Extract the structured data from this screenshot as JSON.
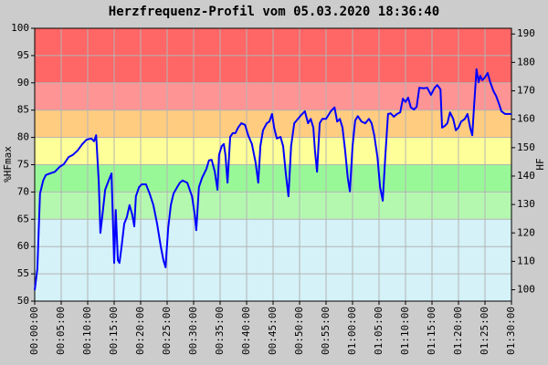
{
  "chart_data": {
    "type": "line",
    "title": "Herzfrequenz-Profil vom 05.03.2020 18:36:40",
    "ylabel": "%HFmax",
    "y2label": "HF",
    "grid": true,
    "xlim": [
      0,
      90
    ],
    "xticks": [
      {
        "value": 0,
        "label": "00:00:00"
      },
      {
        "value": 5,
        "label": "00:05:00"
      },
      {
        "value": 10,
        "label": "00:10:00"
      },
      {
        "value": 15,
        "label": "00:15:00"
      },
      {
        "value": 20,
        "label": "00:20:00"
      },
      {
        "value": 25,
        "label": "00:25:00"
      },
      {
        "value": 30,
        "label": "00:30:00"
      },
      {
        "value": 35,
        "label": "00:35:00"
      },
      {
        "value": 40,
        "label": "00:40:00"
      },
      {
        "value": 45,
        "label": "00:45:00"
      },
      {
        "value": 50,
        "label": "00:50:00"
      },
      {
        "value": 55,
        "label": "00:55:00"
      },
      {
        "value": 60,
        "label": "01:00:00"
      },
      {
        "value": 65,
        "label": "01:05:00"
      },
      {
        "value": 70,
        "label": "01:10:00"
      },
      {
        "value": 75,
        "label": "01:15:00"
      },
      {
        "value": 80,
        "label": "01:20:00"
      },
      {
        "value": 85,
        "label": "01:25:00"
      },
      {
        "value": 90,
        "label": "01:30:00"
      }
    ],
    "ylim": [
      50,
      100
    ],
    "yticks": [
      50,
      55,
      60,
      65,
      70,
      75,
      80,
      85,
      90,
      95,
      100
    ],
    "y2lim": [
      96,
      192
    ],
    "y2ticks": [
      100,
      110,
      120,
      130,
      140,
      150,
      160,
      170,
      180,
      190
    ],
    "zones": [
      {
        "from": 50,
        "to": 65,
        "color": "#d4f2f8"
      },
      {
        "from": 65,
        "to": 70,
        "color": "#b4f8b0"
      },
      {
        "from": 70,
        "to": 75,
        "color": "#98f898"
      },
      {
        "from": 75,
        "to": 80,
        "color": "#ffff99"
      },
      {
        "from": 80,
        "to": 85,
        "color": "#ffcc80"
      },
      {
        "from": 85,
        "to": 90,
        "color": "#ff9494"
      },
      {
        "from": 90,
        "to": 100,
        "color": "#ff6666"
      }
    ],
    "x": [
      0,
      0.5,
      1.0,
      1.6,
      2.1,
      2.9,
      3.8,
      4.7,
      5.5,
      6.4,
      7.2,
      8.1,
      9.0,
      9.8,
      10.7,
      11.2,
      11.6,
      12.1,
      12.4,
      12.8,
      13.3,
      13.8,
      14.5,
      15.0,
      15.3,
      15.7,
      16.0,
      16.4,
      16.9,
      17.4,
      17.9,
      18.4,
      18.8,
      19.1,
      19.7,
      20.2,
      21.0,
      21.7,
      22.4,
      23.1,
      23.8,
      24.3,
      24.7,
      25.2,
      25.7,
      26.2,
      26.9,
      27.4,
      27.9,
      28.8,
      29.7,
      30.2,
      30.5,
      31.0,
      31.6,
      32.4,
      32.9,
      33.4,
      34.0,
      34.5,
      34.8,
      35.3,
      35.7,
      36.0,
      36.4,
      36.9,
      37.4,
      37.9,
      38.4,
      39.0,
      39.7,
      40.3,
      41.0,
      41.7,
      42.2,
      42.6,
      43.1,
      43.8,
      44.3,
      44.8,
      45.2,
      45.7,
      46.4,
      46.9,
      47.4,
      47.9,
      48.4,
      49.0,
      49.7,
      50.3,
      51.0,
      51.6,
      52.1,
      52.6,
      52.9,
      53.3,
      53.8,
      54.3,
      55.0,
      55.9,
      56.6,
      57.1,
      57.6,
      58.1,
      58.6,
      59.1,
      59.5,
      60.0,
      60.5,
      61.0,
      61.7,
      62.4,
      63.1,
      63.6,
      64.1,
      64.7,
      65.2,
      65.7,
      66.2,
      66.7,
      67.2,
      67.8,
      68.4,
      69.0,
      69.5,
      70.0,
      70.5,
      71.0,
      71.6,
      72.1,
      72.6,
      73.4,
      74.1,
      74.8,
      75.5,
      76.0,
      76.6,
      76.9,
      77.4,
      77.9,
      78.4,
      79.0,
      79.5,
      80.0,
      80.5,
      81.2,
      81.7,
      82.2,
      82.6,
      82.9,
      83.4,
      83.8,
      84.1,
      84.5,
      85.0,
      85.5,
      86.0,
      86.6,
      87.1,
      87.6,
      88.1,
      88.8,
      89.5,
      90.0
    ],
    "series": [
      {
        "color": "#0000ff",
        "values": [
          52.0,
          55.9,
          69.7,
          72.1,
          73.1,
          73.4,
          73.7,
          74.6,
          75.1,
          76.4,
          76.8,
          77.6,
          78.8,
          79.6,
          79.8,
          79.3,
          80.4,
          71.7,
          62.5,
          65.9,
          70.4,
          71.7,
          73.4,
          57.0,
          66.7,
          57.5,
          57.0,
          60.0,
          64.2,
          65.4,
          67.6,
          65.9,
          63.7,
          69.2,
          70.9,
          71.4,
          71.4,
          69.7,
          67.6,
          64.2,
          60.0,
          57.5,
          56.2,
          63.4,
          67.6,
          69.7,
          70.9,
          71.7,
          72.1,
          71.7,
          69.2,
          65.9,
          63.0,
          70.9,
          72.6,
          74.2,
          75.8,
          75.9,
          73.7,
          70.4,
          76.8,
          78.4,
          78.8,
          76.8,
          71.7,
          80.1,
          80.8,
          80.8,
          81.8,
          82.6,
          82.3,
          80.4,
          78.8,
          75.4,
          71.7,
          78.4,
          81.3,
          82.6,
          82.9,
          84.3,
          81.8,
          79.8,
          80.1,
          78.4,
          73.4,
          69.2,
          78.4,
          82.6,
          83.4,
          84.1,
          84.8,
          82.6,
          83.4,
          81.8,
          77.6,
          73.7,
          82.6,
          83.4,
          83.4,
          84.8,
          85.5,
          82.9,
          83.4,
          81.8,
          77.6,
          72.6,
          70.1,
          78.4,
          83.1,
          83.9,
          82.9,
          82.6,
          83.4,
          82.6,
          80.4,
          76.4,
          70.9,
          68.4,
          76.8,
          84.3,
          84.4,
          83.8,
          84.3,
          84.6,
          87.1,
          86.5,
          87.3,
          85.5,
          85.1,
          85.6,
          89.1,
          89.0,
          89.1,
          87.8,
          89.1,
          89.6,
          88.8,
          81.8,
          82.1,
          82.6,
          84.6,
          83.4,
          81.3,
          81.8,
          82.9,
          83.4,
          84.3,
          81.8,
          80.4,
          85.1,
          92.5,
          90.1,
          91.3,
          90.5,
          91.0,
          91.8,
          90.1,
          88.5,
          87.6,
          86.3,
          84.8,
          84.3,
          84.3,
          84.3
        ]
      }
    ]
  }
}
